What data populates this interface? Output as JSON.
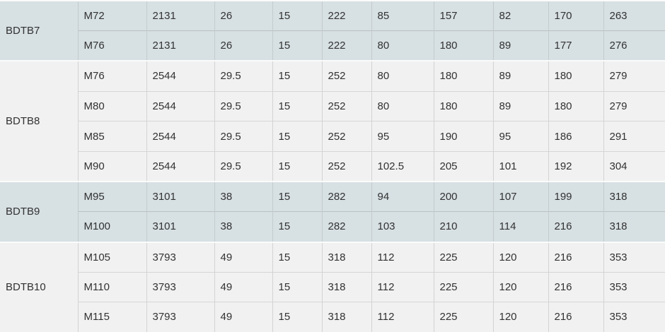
{
  "table": {
    "description": "Bolt/flange specification table with grouped size series",
    "groups": [
      {
        "label": "BDTB7",
        "rows": [
          [
            "M72",
            "2131",
            "26",
            "15",
            "222",
            "85",
            "157",
            "82",
            "170",
            "263"
          ],
          [
            "M76",
            "2131",
            "26",
            "15",
            "222",
            "80",
            "180",
            "89",
            "177",
            "276"
          ]
        ]
      },
      {
        "label": "BDTB8",
        "rows": [
          [
            "M76",
            "2544",
            "29.5",
            "15",
            "252",
            "80",
            "180",
            "89",
            "180",
            "279"
          ],
          [
            "M80",
            "2544",
            "29.5",
            "15",
            "252",
            "80",
            "180",
            "89",
            "180",
            "279"
          ],
          [
            "M85",
            "2544",
            "29.5",
            "15",
            "252",
            "95",
            "190",
            "95",
            "186",
            "291"
          ],
          [
            "M90",
            "2544",
            "29.5",
            "15",
            "252",
            "102.5",
            "205",
            "101",
            "192",
            "304"
          ]
        ]
      },
      {
        "label": "BDTB9",
        "rows": [
          [
            "M95",
            "3101",
            "38",
            "15",
            "282",
            "94",
            "200",
            "107",
            "199",
            "318"
          ],
          [
            "M100",
            "3101",
            "38",
            "15",
            "282",
            "103",
            "210",
            "114",
            "216",
            "318"
          ]
        ]
      },
      {
        "label": "BDTB10",
        "rows": [
          [
            "M105",
            "3793",
            "49",
            "15",
            "318",
            "112",
            "225",
            "120",
            "216",
            "353"
          ],
          [
            "M110",
            "3793",
            "49",
            "15",
            "318",
            "112",
            "225",
            "120",
            "216",
            "353"
          ],
          [
            "M115",
            "3793",
            "49",
            "15",
            "318",
            "112",
            "225",
            "120",
            "216",
            "353"
          ]
        ]
      }
    ],
    "colors": {
      "group_shade_blue": "#d7e0e3",
      "group_shade_gray": "#f1f1f2",
      "text": "#323232",
      "group_separator": "#fafbfb",
      "bottom_border": "#aeb2b3"
    }
  }
}
